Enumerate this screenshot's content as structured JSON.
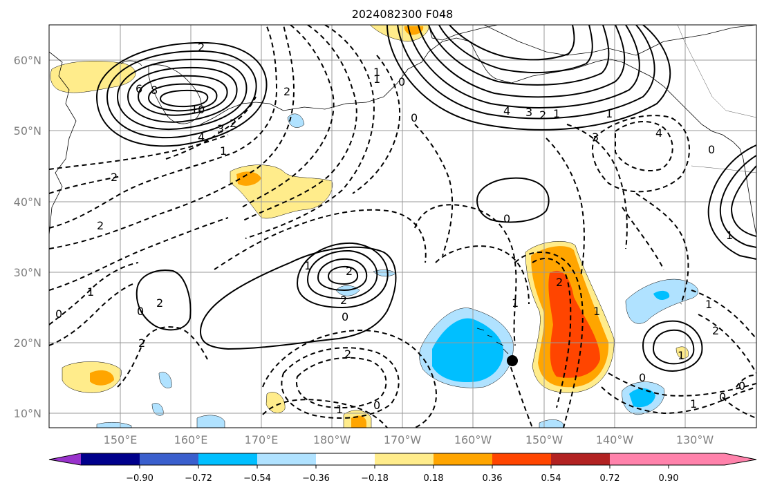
{
  "title": "2024082300 F048",
  "lat_labels": [
    "60°N",
    "50°N",
    "40°N",
    "30°N",
    "20°N",
    "10°N"
  ],
  "lon_labels": [
    "150°E",
    "160°E",
    "170°E",
    "180°W",
    "170°W",
    "160°W",
    "150°W",
    "140°W",
    "130°W"
  ],
  "colorbar": {
    "ticks": [
      "−0.90",
      "−0.72",
      "−0.54",
      "−0.36",
      "−0.18",
      "0.18",
      "0.36",
      "0.54",
      "0.72",
      "0.90"
    ],
    "colors": [
      "#9932cc",
      "#00008b",
      "#3a5fcd",
      "#00bfff",
      "#b0e2ff",
      "#ffffff",
      "#ffec8b",
      "#ffa500",
      "#ff4500",
      "#b22222",
      "#ff82ab"
    ]
  },
  "contour_labels": [
    "2",
    "6",
    "8",
    "10",
    "4",
    "3",
    "2",
    "1",
    "2",
    "2",
    "2",
    "1",
    "0",
    "0",
    "4",
    "3",
    "2",
    "1",
    "1",
    "4",
    "3",
    "0",
    "0",
    "2",
    "2",
    "0",
    "0",
    "2",
    "2",
    "1",
    "0",
    "1",
    "1",
    "1",
    "0",
    "2",
    "1",
    "2",
    "1",
    "0",
    "1",
    "0",
    "1",
    "1",
    "0",
    "1",
    "2"
  ],
  "marker": "black-dot"
}
